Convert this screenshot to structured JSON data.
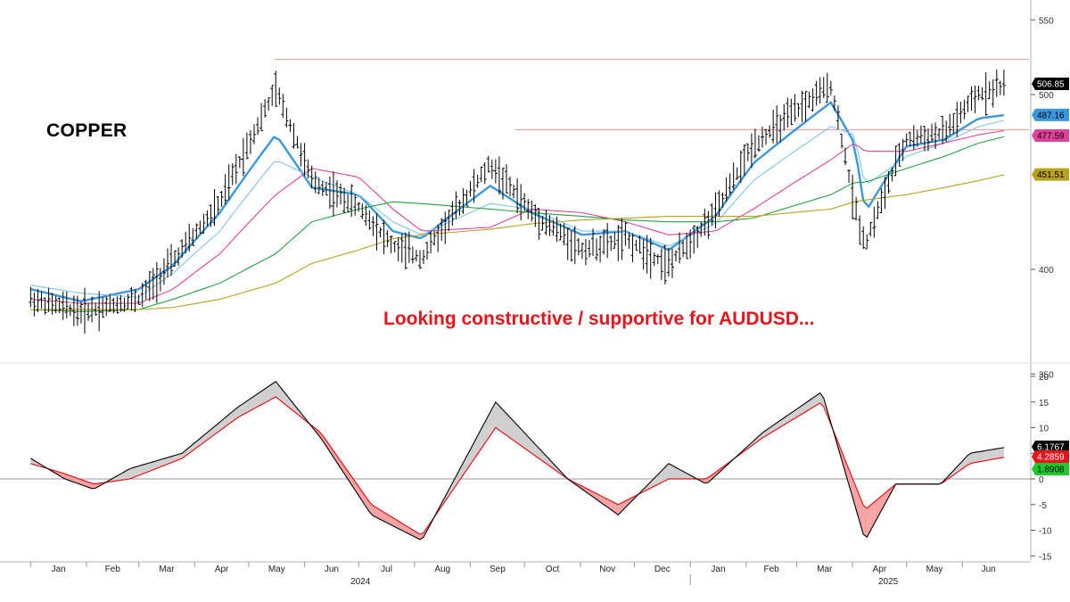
{
  "header": {
    "asset_title": "COPPER",
    "annotation": "Looking constructive / supportive for AUDUSD..."
  },
  "chart_data": [
    {
      "type": "ohlc",
      "title": "COPPER",
      "annotation": "Looking constructive / supportive for AUDUSD...",
      "y_axis": {
        "position": "right",
        "ticks": [
          350,
          400,
          500,
          550
        ]
      },
      "x": [
        "2024-01",
        "2024-02",
        "2024-03",
        "2024-04",
        "2024-05",
        "2024-06",
        "2024-07",
        "2024-08",
        "2024-09",
        "2024-10",
        "2024-11",
        "2024-12",
        "2025-01",
        "2025-02",
        "2025-03",
        "2025-04",
        "2025-05",
        "2025-06"
      ],
      "price": [
        385,
        379,
        385,
        404,
        435,
        503,
        448,
        433,
        412,
        406,
        457,
        430,
        410,
        416,
        402,
        430,
        469,
        506,
        434,
        413,
        472,
        476,
        500,
        506.85
      ],
      "price_dates": [
        "2024-01-01",
        "2024-01-29",
        "2024-03-01",
        "2024-03-20",
        "2024-04-15",
        "2024-05-16",
        "2024-06-05",
        "2024-07-01",
        "2024-07-20",
        "2024-08-05",
        "2024-09-12",
        "2024-10-05",
        "2024-11-02",
        "2024-11-26",
        "2024-12-20",
        "2025-01-15",
        "2025-02-05",
        "2025-03-20",
        "2025-04-02",
        "2025-04-08",
        "2025-05-01",
        "2025-05-22",
        "2025-06-10",
        "2025-06-25"
      ],
      "horizontal_lines": [
        {
          "value": 523,
          "color": "#f2a3a3"
        },
        {
          "value": 478,
          "color": "#f2a3a3"
        }
      ],
      "moving_averages": [
        {
          "color": "#3a98e0",
          "last_value": 487.16,
          "points": [
            390,
            384,
            390,
            402,
            430,
            475,
            444,
            440,
            420,
            416,
            445,
            430,
            418,
            420,
            410,
            428,
            458,
            495,
            470,
            430,
            468,
            472,
            485,
            487.16
          ]
        },
        {
          "color": "#7fc4ee",
          "points": [
            392,
            388,
            386,
            398,
            420,
            460,
            450,
            440,
            425,
            418,
            435,
            432,
            420,
            420,
            412,
            424,
            448,
            480,
            475,
            445,
            462,
            470,
            480,
            484
          ]
        },
        {
          "color": "#e2409b",
          "last_value": 477.59,
          "points": [
            385,
            383,
            383,
            390,
            408,
            440,
            455,
            450,
            432,
            420,
            422,
            432,
            430,
            425,
            418,
            420,
            432,
            460,
            470,
            465,
            465,
            470,
            475,
            477.59
          ]
        },
        {
          "color": "#21a33b",
          "points": [
            380,
            379,
            380,
            385,
            393,
            408,
            425,
            432,
            436,
            435,
            432,
            430,
            428,
            426,
            425,
            425,
            427,
            440,
            447,
            447,
            455,
            462,
            470,
            474
          ]
        },
        {
          "color": "#b8a11c",
          "last_value": 451.51,
          "points": [
            380,
            380,
            380,
            381,
            385,
            393,
            403,
            410,
            416,
            418,
            421,
            424,
            426,
            427,
            428,
            428,
            428,
            432,
            436,
            437,
            440,
            444,
            448,
            451.51
          ]
        }
      ],
      "price_tags": [
        {
          "label": "506.85",
          "value": 506.85,
          "bg": "#000000",
          "fg": "#ffffff"
        },
        {
          "label": "487.16",
          "value": 487.16,
          "bg": "#3a98e0",
          "fg": "#000000"
        },
        {
          "label": "477.59",
          "value": 477.59,
          "bg": "#e2409b",
          "fg": "#000000"
        },
        {
          "label": "451.51",
          "value": 451.51,
          "bg": "#b8a11c",
          "fg": "#000000"
        }
      ]
    },
    {
      "type": "oscillator",
      "y_axis": {
        "position": "right",
        "ticks": [
          20,
          15,
          10,
          5,
          0,
          -5,
          -10,
          -15
        ],
        "range": [
          -16,
          21
        ]
      },
      "fast": [
        4,
        0,
        -2,
        2,
        5,
        14,
        19,
        8,
        -7,
        -12,
        15,
        0,
        -7,
        3,
        -1,
        9,
        17,
        -12,
        -1,
        -1,
        5,
        6.1767
      ],
      "slow": [
        3,
        1,
        -1,
        0,
        4,
        12,
        16,
        9,
        -5,
        -11,
        10,
        0,
        -5,
        0,
        0,
        8,
        15,
        -6,
        -1,
        -1,
        3,
        4.2859
      ],
      "osc_dates": [
        "2024-01-01",
        "2024-01-20",
        "2024-02-05",
        "2024-02-25",
        "2024-03-25",
        "2024-04-25",
        "2024-05-16",
        "2024-06-10",
        "2024-07-08",
        "2024-08-05",
        "2024-09-15",
        "2024-10-25",
        "2024-11-22",
        "2024-12-20",
        "2025-01-10",
        "2025-02-10",
        "2025-03-15",
        "2025-04-08",
        "2025-04-25",
        "2025-05-20",
        "2025-06-05",
        "2025-06-25"
      ],
      "value_tags": [
        {
          "label": "6.1767",
          "value": 6.1767,
          "bg": "#000000",
          "fg": "#ffffff"
        },
        {
          "label": "4.2859",
          "value": 4.2859,
          "bg": "#e8141b",
          "fg": "#ffffff"
        },
        {
          "label": "1.8908",
          "value": 1.8908,
          "bg": "#21c72f",
          "fg": "#000000"
        }
      ],
      "fill_up_color": "#cfcfcf",
      "fill_down_color": "#f4a2a2"
    }
  ],
  "x_axis": {
    "months": [
      "Jan",
      "Feb",
      "Mar",
      "Apr",
      "May",
      "Jun",
      "Jul",
      "Aug",
      "Sep",
      "Oct",
      "Nov",
      "Dec",
      "Jan",
      "Feb",
      "Mar",
      "Apr",
      "May",
      "Jun"
    ],
    "years": [
      "2024",
      "2025"
    ]
  }
}
